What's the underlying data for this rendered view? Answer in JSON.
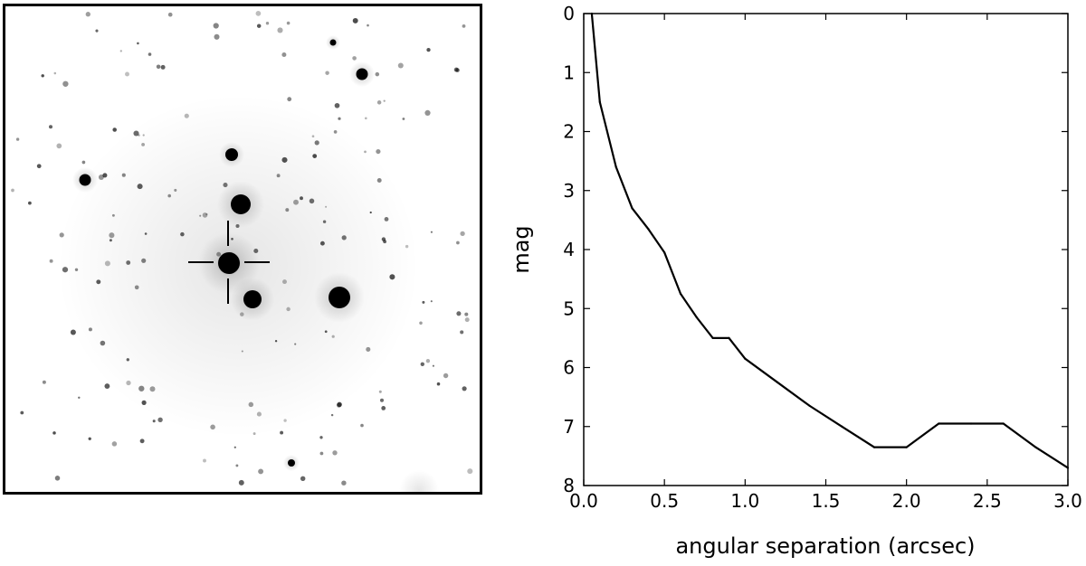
{
  "chart_data": {
    "type": "line",
    "xlabel": "angular separation (arcsec)",
    "ylabel": "mag",
    "xlim": [
      0.0,
      3.0
    ],
    "ylim": [
      0,
      8
    ],
    "y_inverted": true,
    "xticks": [
      "0.0",
      "0.5",
      "1.0",
      "1.5",
      "2.0",
      "2.5",
      "3.0"
    ],
    "yticks": [
      "0",
      "1",
      "2",
      "3",
      "4",
      "5",
      "6",
      "7",
      "8"
    ],
    "grid": false,
    "series": [
      {
        "x": [
          0.05,
          0.1,
          0.2,
          0.3,
          0.4,
          0.5,
          0.6,
          0.7,
          0.8,
          0.9,
          1.0,
          1.2,
          1.4,
          1.6,
          1.8,
          2.0,
          2.2,
          2.4,
          2.6,
          2.8,
          3.0
        ],
        "y": [
          0.0,
          1.5,
          2.6,
          3.3,
          3.65,
          4.05,
          4.75,
          5.15,
          5.5,
          5.5,
          5.85,
          6.25,
          6.65,
          7.0,
          7.35,
          7.35,
          6.95,
          6.95,
          6.95,
          7.35,
          7.7
        ]
      }
    ]
  },
  "colors": {
    "line": "#000000",
    "frame": "#000000",
    "background": "#ffffff"
  },
  "star_image": {
    "marker": "crosshair"
  }
}
